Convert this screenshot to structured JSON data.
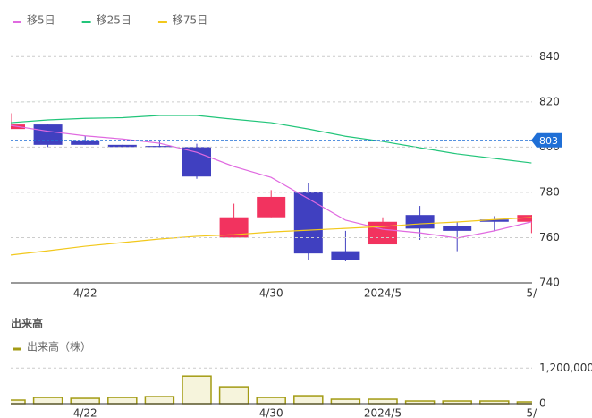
{
  "chart_data": [
    {
      "type": "candlestick",
      "categories": [
        null,
        null,
        "4/22",
        null,
        null,
        null,
        null,
        "4/30",
        null,
        null,
        "2024/5",
        null,
        null,
        null,
        "5/"
      ],
      "ohlc": {
        "open": [
          808,
          810,
          803,
          801,
          800.5,
          800,
          760,
          769,
          780,
          754,
          757,
          770,
          765,
          768,
          767
        ],
        "high": [
          815,
          810,
          805,
          801,
          802.5,
          801.5,
          775,
          781,
          784,
          763,
          769,
          774,
          767,
          769.5,
          770
        ],
        "low": [
          808,
          800,
          801,
          800,
          800,
          786,
          760,
          769,
          750,
          749.5,
          757,
          759,
          754,
          763,
          762
        ],
        "close": [
          810,
          801,
          801,
          800,
          800,
          787,
          769,
          778,
          753,
          750,
          767,
          764,
          763,
          767,
          770
        ]
      },
      "up_color": "#f2335f",
      "down_color": "#4040c0",
      "series": [
        {
          "name": "移5日",
          "color": "#e06ae0",
          "values": [
            809.6,
            807,
            805,
            803.6,
            801.7,
            797.7,
            791.4,
            786.6,
            777.2,
            767.7,
            763.7,
            762.1,
            759.8,
            763,
            767
          ]
        },
        {
          "name": "移25日",
          "color": "#22c57a",
          "values": [
            810.8,
            812,
            812.7,
            813,
            814,
            814,
            812.3,
            810.8,
            808,
            804.8,
            802.5,
            799.7,
            797,
            795,
            793
          ]
        },
        {
          "name": "移75日",
          "color": "#f2c81c",
          "values": [
            752.3,
            754.2,
            756.2,
            757.8,
            759.4,
            760.6,
            761.3,
            762.5,
            763.3,
            764.1,
            764.9,
            766.1,
            766.9,
            768,
            768.9
          ]
        }
      ],
      "current": 803,
      "current_color": "#1f6fd6",
      "ylim": [
        740,
        850
      ],
      "yticks": [
        740,
        760,
        780,
        800,
        820,
        840
      ],
      "grid": true
    },
    {
      "type": "bar",
      "title": "出来高",
      "categories": [
        null,
        null,
        "4/22",
        null,
        null,
        null,
        null,
        "4/30",
        null,
        null,
        "2024/5",
        null,
        null,
        null,
        "5/"
      ],
      "series": [
        {
          "name": "出来高（株）",
          "color": "#a39b14",
          "fill": "#f6f4dc",
          "values": [
            120000,
            210000,
            180000,
            210000,
            240000,
            930000,
            570000,
            210000,
            270000,
            150000,
            150000,
            90000,
            90000,
            90000,
            60000
          ]
        }
      ],
      "ylim": [
        0,
        1600000
      ],
      "yticks": [
        0,
        {
          "value": 1200000,
          "label": "1,200,000"
        }
      ],
      "grid": true
    }
  ]
}
